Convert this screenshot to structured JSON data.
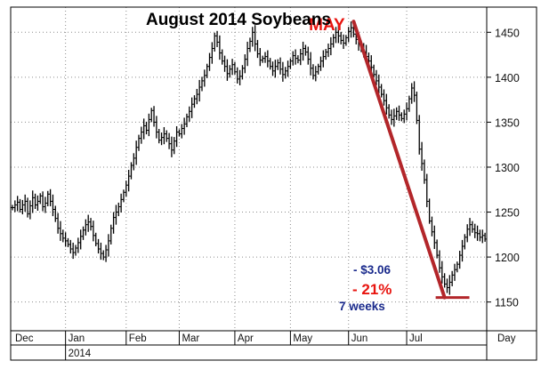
{
  "chart_data": {
    "type": "ohlc-bar",
    "title": "August 2014 Soybeans",
    "x_unit_label": "Day",
    "months": [
      "Dec",
      "Jan",
      "Feb",
      "Mar",
      "Apr",
      "May",
      "Jun",
      "Jul"
    ],
    "year_label": "2014",
    "y_ticks": [
      1150,
      1200,
      1250,
      1300,
      1350,
      1400,
      1450
    ],
    "ylim": [
      1118,
      1478
    ],
    "grid": true,
    "annotations": {
      "peak_label": "MAY",
      "price_drop": "- $3.06",
      "percent_drop": "- 21%",
      "duration": "7 weeks"
    },
    "trend_line": {
      "from": {
        "bar": 135,
        "price": 1462
      },
      "to": {
        "bar": 171,
        "price": 1155
      }
    },
    "bottom_marker": {
      "price": 1155,
      "from_bar": 171,
      "to_bar": 178
    },
    "daily_closes": [
      1255,
      1258,
      1261,
      1253,
      1258,
      1262,
      1248,
      1257,
      1266,
      1258,
      1262,
      1268,
      1256,
      1260,
      1270,
      1262,
      1253,
      1243,
      1232,
      1226,
      1221,
      1218,
      1214,
      1209,
      1205,
      1210,
      1216,
      1223,
      1230,
      1236,
      1239,
      1234,
      1224,
      1215,
      1209,
      1204,
      1200,
      1208,
      1218,
      1232,
      1244,
      1250,
      1256,
      1264,
      1272,
      1280,
      1290,
      1302,
      1310,
      1322,
      1332,
      1339,
      1346,
      1341,
      1353,
      1363,
      1350,
      1339,
      1330,
      1333,
      1337,
      1332,
      1326,
      1319,
      1329,
      1339,
      1337,
      1343,
      1348,
      1356,
      1362,
      1370,
      1376,
      1381,
      1389,
      1396,
      1402,
      1412,
      1422,
      1432,
      1446,
      1439,
      1427,
      1418,
      1412,
      1404,
      1409,
      1414,
      1406,
      1398,
      1401,
      1410,
      1420,
      1432,
      1440,
      1450,
      1437,
      1426,
      1419,
      1421,
      1423,
      1418,
      1412,
      1407,
      1412,
      1416,
      1409,
      1403,
      1407,
      1412,
      1418,
      1424,
      1421,
      1419,
      1426,
      1432,
      1428,
      1420,
      1410,
      1402,
      1406,
      1412,
      1418,
      1423,
      1428,
      1432,
      1437,
      1444,
      1450,
      1446,
      1441,
      1438,
      1444,
      1451,
      1455,
      1448,
      1442,
      1437,
      1432,
      1428,
      1423,
      1418,
      1411,
      1403,
      1396,
      1389,
      1381,
      1374,
      1366,
      1358,
      1353,
      1357,
      1362,
      1358,
      1354,
      1359,
      1365,
      1376,
      1388,
      1380,
      1352,
      1320,
      1304,
      1286,
      1262,
      1240,
      1228,
      1216,
      1202,
      1188,
      1178,
      1170,
      1166,
      1172,
      1180,
      1186,
      1192,
      1202,
      1212,
      1222,
      1231,
      1236,
      1231,
      1227,
      1226,
      1222,
      1224,
      1220
    ]
  }
}
